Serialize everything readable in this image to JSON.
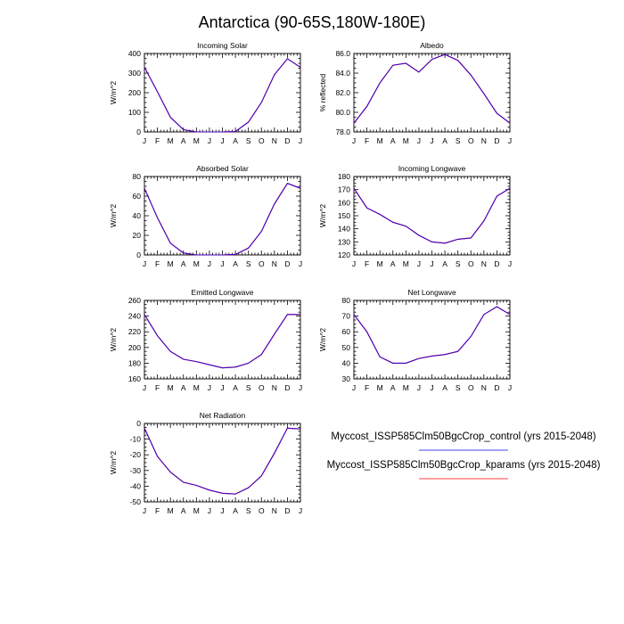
{
  "figure": {
    "title": "Antarctica (90-65S,180W-180E)"
  },
  "months": [
    "J",
    "F",
    "M",
    "A",
    "M",
    "J",
    "J",
    "A",
    "S",
    "O",
    "N",
    "D",
    "J"
  ],
  "legend": {
    "entries": [
      {
        "label": "Myccost_ISSP585Clm50BgcCrop_control (yrs 2015-2048)",
        "color": "#0000ff"
      },
      {
        "label": "Myccost_ISSP585Clm50BgcCrop_kparams (yrs 2015-2048)",
        "color": "#ff0000"
      }
    ]
  },
  "chart_data": [
    {
      "type": "line",
      "title": "Incoming Solar",
      "ylabel": "W/m^2",
      "ylim": [
        0,
        400
      ],
      "yticks": [
        0,
        100,
        200,
        300,
        400
      ],
      "yticklabels": [
        "0",
        "100",
        "200",
        "300",
        "400"
      ],
      "series": [
        {
          "values": [
            330,
            205,
            75,
            12,
            0,
            0,
            0,
            2,
            50,
            150,
            292,
            373,
            330
          ]
        },
        {
          "values": [
            330,
            205,
            75,
            12,
            0,
            0,
            0,
            2,
            50,
            150,
            292,
            373,
            330
          ]
        }
      ]
    },
    {
      "type": "line",
      "title": "Albedo",
      "ylabel": "% reflected",
      "ylim": [
        78,
        86
      ],
      "yticks": [
        78,
        80,
        82,
        84,
        86
      ],
      "yticklabels": [
        "78.0",
        "80.0",
        "82.0",
        "84.0",
        "86.0"
      ],
      "series": [
        {
          "values": [
            78.9,
            80.6,
            83.0,
            84.8,
            85.0,
            84.1,
            85.4,
            85.9,
            85.3,
            83.8,
            81.9,
            79.9,
            78.9
          ]
        },
        {
          "values": [
            78.9,
            80.6,
            83.0,
            84.8,
            85.0,
            84.1,
            85.4,
            85.9,
            85.3,
            83.8,
            81.9,
            79.9,
            78.9
          ]
        }
      ]
    },
    {
      "type": "line",
      "title": "Absorbed Solar",
      "ylabel": "W/m^2",
      "ylim": [
        0,
        80
      ],
      "yticks": [
        0,
        20,
        40,
        60,
        80
      ],
      "yticklabels": [
        "0",
        "20",
        "40",
        "60",
        "80"
      ],
      "series": [
        {
          "values": [
            68,
            38,
            12,
            2,
            0,
            0,
            0,
            0.5,
            7,
            24,
            52,
            73,
            68
          ]
        },
        {
          "values": [
            68,
            38,
            12,
            2,
            0,
            0,
            0,
            0.5,
            7,
            24,
            52,
            73,
            68
          ]
        }
      ]
    },
    {
      "type": "line",
      "title": "Incoming Longwave",
      "ylabel": "W/m^2",
      "ylim": [
        120,
        180
      ],
      "yticks": [
        120,
        130,
        140,
        150,
        160,
        170,
        180
      ],
      "yticklabels": [
        "120",
        "130",
        "140",
        "150",
        "160",
        "170",
        "180"
      ],
      "series": [
        {
          "values": [
            171,
            156,
            151,
            145,
            142,
            135,
            130,
            129,
            132,
            133,
            146,
            165,
            171
          ]
        },
        {
          "values": [
            171,
            156,
            151,
            145,
            142,
            135,
            130,
            129,
            132,
            133,
            146,
            165,
            171
          ]
        }
      ]
    },
    {
      "type": "line",
      "title": "Emitted Longwave",
      "ylabel": "W/m^2",
      "ylim": [
        160,
        260
      ],
      "yticks": [
        160,
        180,
        200,
        220,
        240,
        260
      ],
      "yticklabels": [
        "160",
        "180",
        "200",
        "220",
        "240",
        "260"
      ],
      "series": [
        {
          "values": [
            242,
            215,
            195,
            185,
            182,
            178,
            174,
            175,
            180,
            191,
            217,
            242,
            242
          ]
        },
        {
          "values": [
            242,
            215,
            195,
            185,
            182,
            178,
            174,
            175,
            180,
            191,
            217,
            242,
            242
          ]
        }
      ]
    },
    {
      "type": "line",
      "title": "Net Longwave",
      "ylabel": "W/m^2",
      "ylim": [
        30,
        80
      ],
      "yticks": [
        30,
        40,
        50,
        60,
        70,
        80
      ],
      "yticklabels": [
        "30",
        "40",
        "50",
        "60",
        "70",
        "80"
      ],
      "series": [
        {
          "values": [
            71,
            60,
            44,
            40,
            40,
            43,
            44.5,
            45.5,
            47.5,
            57,
            71,
            76,
            71
          ]
        },
        {
          "values": [
            71,
            60,
            44,
            40,
            40,
            43,
            44.5,
            45.5,
            47.5,
            57,
            71,
            76,
            71
          ]
        }
      ]
    },
    {
      "type": "line",
      "title": "Net Radiation",
      "ylabel": "W/m^2",
      "ylim": [
        -50,
        0
      ],
      "yticks": [
        -50,
        -40,
        -30,
        -20,
        -10,
        0
      ],
      "yticklabels": [
        "-50",
        "-40",
        "-30",
        "-20",
        "-10",
        "0"
      ],
      "series": [
        {
          "values": [
            -3,
            -21,
            -31,
            -37.5,
            -39.5,
            -42.5,
            -44.5,
            -45,
            -41,
            -33.5,
            -19,
            -3,
            -3.5
          ]
        },
        {
          "values": [
            -3,
            -21,
            -31,
            -37.5,
            -39.5,
            -42.5,
            -44.5,
            -45,
            -41,
            -33.5,
            -19,
            -3,
            -3.5
          ]
        }
      ]
    }
  ]
}
